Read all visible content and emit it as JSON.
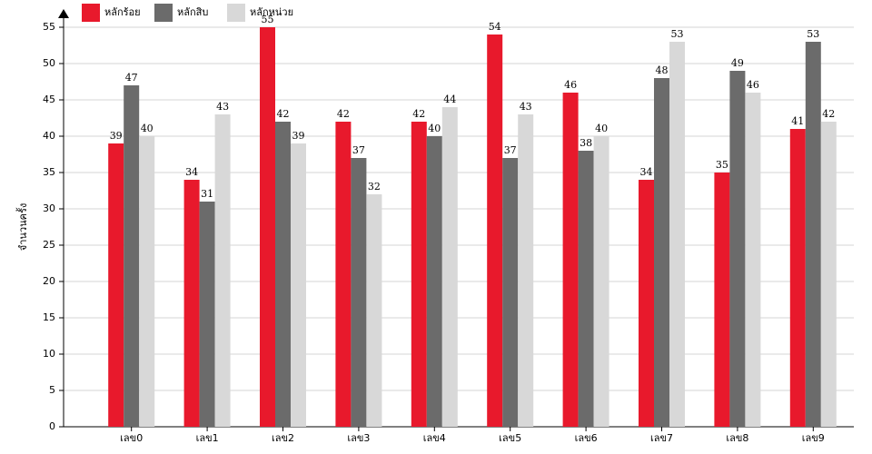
{
  "chart_data": {
    "type": "bar",
    "y_label": "จำนวนครั้ง",
    "categories": [
      "เลข0",
      "เลข1",
      "เลข2",
      "เลข3",
      "เลข4",
      "เลข5",
      "เลข6",
      "เลข7",
      "เลข8",
      "เลข9"
    ],
    "series": [
      {
        "name": "หลักร้อย",
        "color": "#e8192c",
        "values": [
          39,
          34,
          55,
          42,
          42,
          54,
          46,
          34,
          35,
          41
        ]
      },
      {
        "name": "หลักสิบ",
        "color": "#6b6b6b",
        "values": [
          47,
          31,
          42,
          37,
          40,
          37,
          38,
          48,
          49,
          53
        ]
      },
      {
        "name": "หลักหน่วย",
        "color": "#d8d8d8",
        "values": [
          40,
          43,
          39,
          32,
          44,
          43,
          40,
          53,
          46,
          42
        ]
      }
    ],
    "ylim": [
      0,
      55
    ],
    "yticks": [
      0,
      5,
      10,
      15,
      20,
      25,
      30,
      35,
      40,
      45,
      50,
      55
    ],
    "grid": true
  }
}
